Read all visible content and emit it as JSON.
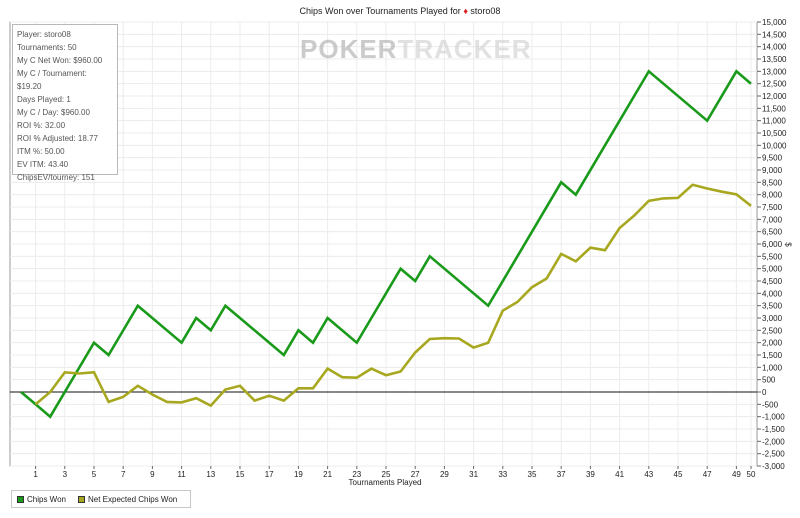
{
  "title": {
    "text": "Chips Won over Tournaments Played for",
    "player": "storo08",
    "suit_icon": "diamond-icon"
  },
  "watermark": {
    "part1": "POKER",
    "part2": "TRACKER"
  },
  "stats": [
    "Player: storo08",
    "Tournaments: 50",
    "My C Net Won: $960.00",
    "My C / Tournament: $19.20",
    "Days Played: 1",
    "My C / Day: $960.00",
    "ROI %: 32.00",
    "ROI % Adjusted: 18.77",
    "ITM %: 50.00",
    "EV ITM: 43.40",
    "ChipsEV/tourney: 151"
  ],
  "legend": [
    {
      "label": "Chips Won",
      "color": "#1a9a1a"
    },
    {
      "label": "Net Expected Chips Won",
      "color": "#a8a820"
    }
  ],
  "chart_data": {
    "type": "line",
    "xlabel": "Tournaments Played",
    "ylabel": "$",
    "xlim": [
      0,
      50
    ],
    "ylim": [
      -3000,
      15000
    ],
    "x_ticks": [
      1,
      3,
      5,
      7,
      9,
      11,
      13,
      15,
      17,
      19,
      21,
      23,
      25,
      27,
      29,
      31,
      33,
      35,
      37,
      39,
      41,
      43,
      45,
      47,
      49,
      50
    ],
    "y_ticks": [
      "-3,000",
      "-2,500",
      "-2,000",
      "-1,500",
      "-1,000",
      "-500",
      "0",
      "500",
      "1,000",
      "1,500",
      "2,000",
      "2,500",
      "3,000",
      "3,500",
      "4,000",
      "4,500",
      "5,000",
      "5,500",
      "6,000",
      "6,500",
      "7,000",
      "7,500",
      "8,000",
      "8,500",
      "9,000",
      "9,500",
      "10,000",
      "10,500",
      "11,000",
      "11,500",
      "12,000",
      "12,500",
      "13,000",
      "13,500",
      "14,000",
      "14,500",
      "15,000"
    ],
    "grid": true,
    "legend_position": "bottom-left",
    "series": [
      {
        "name": "Chips Won",
        "color": "#1a9a1a",
        "points": [
          [
            0,
            0
          ],
          [
            1,
            -500
          ],
          [
            2,
            -1000
          ],
          [
            5,
            2000
          ],
          [
            6,
            1500
          ],
          [
            8,
            3500
          ],
          [
            11,
            2000
          ],
          [
            12,
            3000
          ],
          [
            13,
            2500
          ],
          [
            14,
            3500
          ],
          [
            18,
            1500
          ],
          [
            19,
            2500
          ],
          [
            20,
            2000
          ],
          [
            21,
            3000
          ],
          [
            23,
            2000
          ],
          [
            26,
            5000
          ],
          [
            27,
            4500
          ],
          [
            28,
            5500
          ],
          [
            32,
            3500
          ],
          [
            37,
            8500
          ],
          [
            38,
            8000
          ],
          [
            43,
            13000
          ],
          [
            47,
            11000
          ],
          [
            49,
            13000
          ],
          [
            50,
            12500
          ]
        ]
      },
      {
        "name": "Net Expected Chips Won",
        "color": "#a8a820",
        "points": [
          [
            1,
            -500
          ],
          [
            2,
            0
          ],
          [
            3,
            800
          ],
          [
            4,
            750
          ],
          [
            5,
            800
          ],
          [
            6,
            -400
          ],
          [
            7,
            -200
          ],
          [
            8,
            250
          ],
          [
            9,
            -100
          ],
          [
            10,
            -400
          ],
          [
            11,
            -420
          ],
          [
            12,
            -250
          ],
          [
            13,
            -550
          ],
          [
            14,
            100
          ],
          [
            15,
            250
          ],
          [
            16,
            -350
          ],
          [
            17,
            -150
          ],
          [
            18,
            -350
          ],
          [
            19,
            150
          ],
          [
            20,
            150
          ],
          [
            21,
            950
          ],
          [
            22,
            600
          ],
          [
            23,
            580
          ],
          [
            24,
            950
          ],
          [
            25,
            680
          ],
          [
            26,
            830
          ],
          [
            27,
            1600
          ],
          [
            28,
            2150
          ],
          [
            29,
            2180
          ],
          [
            30,
            2170
          ],
          [
            31,
            1800
          ],
          [
            32,
            2000
          ],
          [
            33,
            3300
          ],
          [
            34,
            3650
          ],
          [
            35,
            4250
          ],
          [
            36,
            4600
          ],
          [
            37,
            5600
          ],
          [
            38,
            5300
          ],
          [
            39,
            5850
          ],
          [
            40,
            5750
          ],
          [
            41,
            6650
          ],
          [
            42,
            7150
          ],
          [
            43,
            7750
          ],
          [
            44,
            7850
          ],
          [
            45,
            7870
          ],
          [
            46,
            8400
          ],
          [
            47,
            8250
          ],
          [
            48,
            8120
          ],
          [
            49,
            8010
          ],
          [
            50,
            7550
          ]
        ]
      }
    ]
  }
}
